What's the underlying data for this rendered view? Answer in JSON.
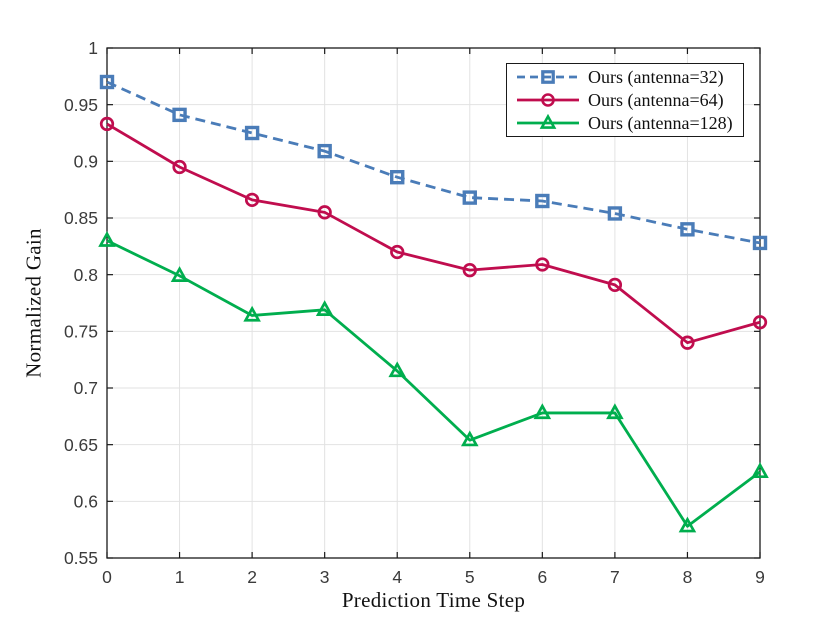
{
  "figure": {
    "background": "#ffffff"
  },
  "chart_data": {
    "type": "line",
    "title": "",
    "xlabel": "Prediction Time Step",
    "ylabel": "Normalized Gain",
    "xlim": [
      0,
      9
    ],
    "ylim": [
      0.55,
      1.0
    ],
    "grid": true,
    "legend_position": "top-right",
    "x": [
      0,
      1,
      2,
      3,
      4,
      5,
      6,
      7,
      8,
      9
    ],
    "xtick_labels": [
      "0",
      "1",
      "2",
      "3",
      "4",
      "5",
      "6",
      "7",
      "8",
      "9"
    ],
    "ytick_values": [
      0.55,
      0.6,
      0.65,
      0.7,
      0.75,
      0.8,
      0.85,
      0.9,
      0.95,
      1.0
    ],
    "ytick_labels": [
      "0.55",
      "0.6",
      "0.65",
      "0.7",
      "0.75",
      "0.8",
      "0.85",
      "0.9",
      "0.95",
      "1"
    ],
    "series": [
      {
        "name": "Ours (antenna=32)",
        "color": "#4A7CB8",
        "line_style": "dashed",
        "marker": "square",
        "values": [
          0.97,
          0.941,
          0.925,
          0.909,
          0.886,
          0.868,
          0.865,
          0.854,
          0.84,
          0.828
        ]
      },
      {
        "name": "Ours (antenna=64)",
        "color": "#C00D4E",
        "line_style": "solid",
        "marker": "circle",
        "values": [
          0.933,
          0.895,
          0.866,
          0.855,
          0.82,
          0.804,
          0.809,
          0.791,
          0.74,
          0.758
        ]
      },
      {
        "name": "Ours (antenna=128)",
        "color": "#00AE4E",
        "line_style": "solid",
        "marker": "triangle",
        "values": [
          0.83,
          0.799,
          0.764,
          0.769,
          0.715,
          0.654,
          0.678,
          0.678,
          0.578,
          0.626
        ]
      }
    ],
    "axis_color": "#1a1a1a",
    "grid_color": "#e2e2e2",
    "tick_label_color": "#3b3b3b"
  }
}
